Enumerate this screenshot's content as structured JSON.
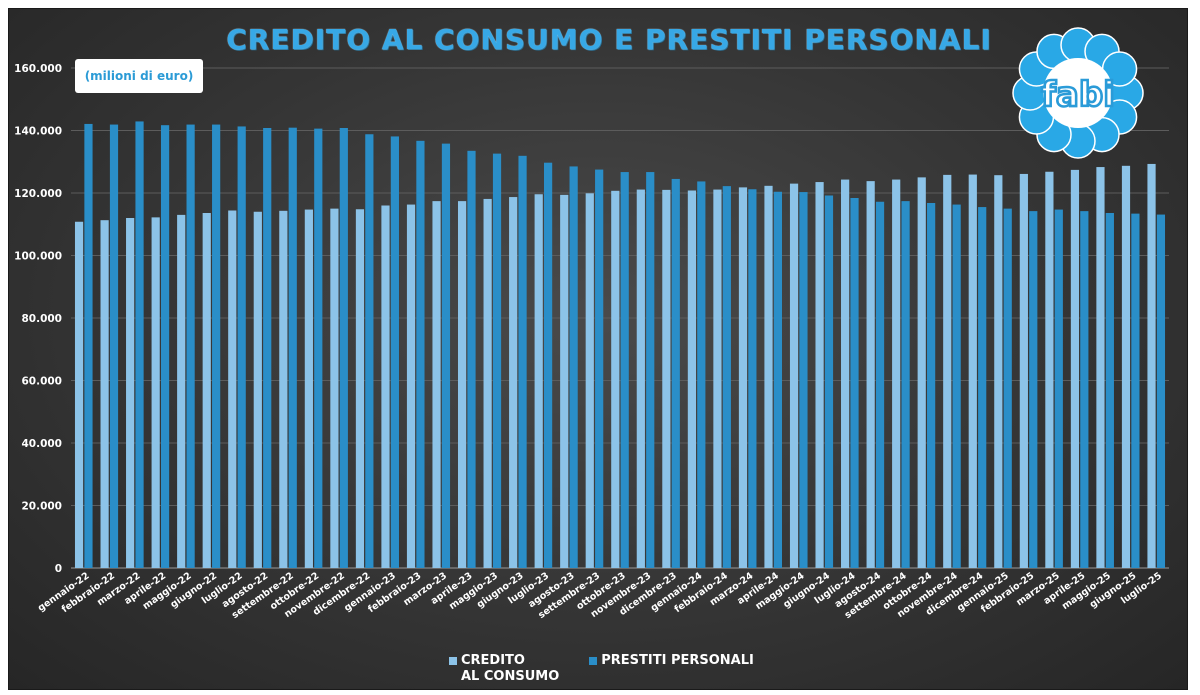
{
  "chart_data": {
    "type": "bar",
    "title": "CREDITO AL CONSUMO E PRESTITI PERSONALI",
    "unit_label": "(milioni di euro)",
    "ylim": [
      0,
      160000
    ],
    "y_ticks": [
      "0",
      "20.000",
      "40.000",
      "60.000",
      "80.000",
      "100.000",
      "120.000",
      "140.000",
      "160.000"
    ],
    "y_tick_values": [
      0,
      20000,
      40000,
      60000,
      80000,
      100000,
      120000,
      140000,
      160000
    ],
    "grid": true,
    "legend_position": "bottom",
    "categories": [
      "gennaio-22",
      "febbraio-22",
      "marzo-22",
      "aprile-22",
      "maggio-22",
      "giugno-22",
      "luglio-22",
      "agosto-22",
      "settembre-22",
      "ottobre-22",
      "novembre-22",
      "dicembre-22",
      "gennaio-23",
      "febbraio-23",
      "marzo-23",
      "aprile-23",
      "maggio-23",
      "giugno-23",
      "luglio-23",
      "agosto-23",
      "settembre-23",
      "ottobre-23",
      "novembre-23",
      "dicembre-23",
      "gennaio-24",
      "febbraio-24",
      "marzo-24",
      "aprile-24",
      "maggio-24",
      "giugno-24",
      "luglio-24",
      "agosto-24",
      "settembre-24",
      "ottobre-24",
      "novembre-24",
      "dicembre-24",
      "gennaio-25",
      "febbraio-25",
      "marzo-25",
      "aprile-25",
      "maggio-25",
      "giugno-25",
      "luglio-25"
    ],
    "series": [
      {
        "name": "CREDITO AL CONSUMO",
        "name_lines": [
          "CREDITO",
          "AL CONSUMO"
        ],
        "color": "#8cc3e8",
        "values": [
          110800,
          111300,
          112000,
          112200,
          113000,
          113600,
          114400,
          114000,
          114300,
          114700,
          115000,
          114800,
          116000,
          116300,
          117400,
          117400,
          118100,
          118700,
          119600,
          119400,
          119900,
          120700,
          121100,
          121000,
          120800,
          121100,
          121800,
          122300,
          123000,
          123500,
          124300,
          123800,
          124300,
          125000,
          125800,
          125900,
          125700,
          126100,
          126800,
          127400,
          128300,
          128700,
          129300
        ]
      },
      {
        "name": "PRESTITI PERSONALI",
        "color": "#2a8ec8",
        "values": [
          142100,
          141900,
          142900,
          141700,
          141900,
          141900,
          141300,
          140800,
          140900,
          140600,
          140800,
          138800,
          138100,
          136700,
          135800,
          133500,
          132600,
          131900,
          129700,
          128500,
          127500,
          126700,
          126700,
          124500,
          123700,
          122200,
          121200,
          120400,
          120300,
          119200,
          118400,
          117200,
          117400,
          116800,
          116300,
          115500,
          115000,
          114200,
          114700,
          114200,
          113600,
          113400,
          113100
        ]
      }
    ]
  },
  "logo": {
    "text": "fabi",
    "petal_color": "#29a8e6",
    "center_color": "#ffffff"
  }
}
